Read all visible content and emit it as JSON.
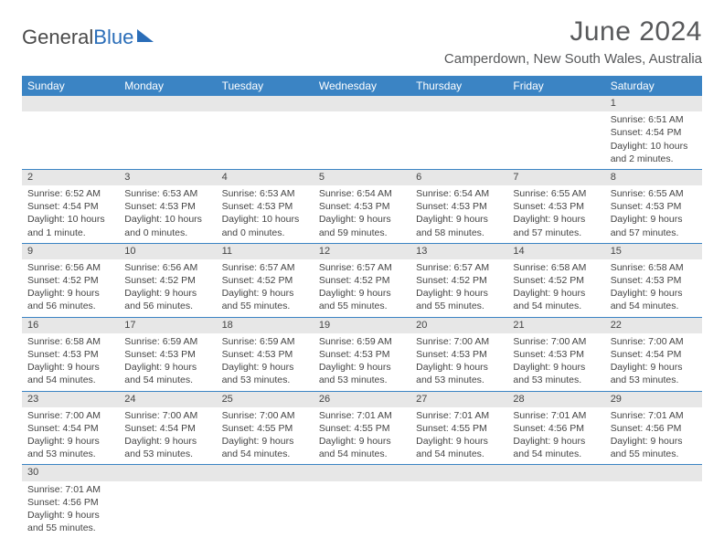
{
  "logo": {
    "part1": "General",
    "part2": "Blue"
  },
  "title": "June 2024",
  "location": "Camperdown, New South Wales, Australia",
  "colors": {
    "header_bg": "#3b84c4",
    "header_text": "#ffffff",
    "daynum_bg": "#e7e7e7",
    "rule": "#3b84c4"
  },
  "daynames": [
    "Sunday",
    "Monday",
    "Tuesday",
    "Wednesday",
    "Thursday",
    "Friday",
    "Saturday"
  ],
  "weeks": [
    [
      null,
      null,
      null,
      null,
      null,
      null,
      {
        "n": "1",
        "sr": "Sunrise: 6:51 AM",
        "ss": "Sunset: 4:54 PM",
        "d1": "Daylight: 10 hours",
        "d2": "and 2 minutes."
      }
    ],
    [
      {
        "n": "2",
        "sr": "Sunrise: 6:52 AM",
        "ss": "Sunset: 4:54 PM",
        "d1": "Daylight: 10 hours",
        "d2": "and 1 minute."
      },
      {
        "n": "3",
        "sr": "Sunrise: 6:53 AM",
        "ss": "Sunset: 4:53 PM",
        "d1": "Daylight: 10 hours",
        "d2": "and 0 minutes."
      },
      {
        "n": "4",
        "sr": "Sunrise: 6:53 AM",
        "ss": "Sunset: 4:53 PM",
        "d1": "Daylight: 10 hours",
        "d2": "and 0 minutes."
      },
      {
        "n": "5",
        "sr": "Sunrise: 6:54 AM",
        "ss": "Sunset: 4:53 PM",
        "d1": "Daylight: 9 hours",
        "d2": "and 59 minutes."
      },
      {
        "n": "6",
        "sr": "Sunrise: 6:54 AM",
        "ss": "Sunset: 4:53 PM",
        "d1": "Daylight: 9 hours",
        "d2": "and 58 minutes."
      },
      {
        "n": "7",
        "sr": "Sunrise: 6:55 AM",
        "ss": "Sunset: 4:53 PM",
        "d1": "Daylight: 9 hours",
        "d2": "and 57 minutes."
      },
      {
        "n": "8",
        "sr": "Sunrise: 6:55 AM",
        "ss": "Sunset: 4:53 PM",
        "d1": "Daylight: 9 hours",
        "d2": "and 57 minutes."
      }
    ],
    [
      {
        "n": "9",
        "sr": "Sunrise: 6:56 AM",
        "ss": "Sunset: 4:52 PM",
        "d1": "Daylight: 9 hours",
        "d2": "and 56 minutes."
      },
      {
        "n": "10",
        "sr": "Sunrise: 6:56 AM",
        "ss": "Sunset: 4:52 PM",
        "d1": "Daylight: 9 hours",
        "d2": "and 56 minutes."
      },
      {
        "n": "11",
        "sr": "Sunrise: 6:57 AM",
        "ss": "Sunset: 4:52 PM",
        "d1": "Daylight: 9 hours",
        "d2": "and 55 minutes."
      },
      {
        "n": "12",
        "sr": "Sunrise: 6:57 AM",
        "ss": "Sunset: 4:52 PM",
        "d1": "Daylight: 9 hours",
        "d2": "and 55 minutes."
      },
      {
        "n": "13",
        "sr": "Sunrise: 6:57 AM",
        "ss": "Sunset: 4:52 PM",
        "d1": "Daylight: 9 hours",
        "d2": "and 55 minutes."
      },
      {
        "n": "14",
        "sr": "Sunrise: 6:58 AM",
        "ss": "Sunset: 4:52 PM",
        "d1": "Daylight: 9 hours",
        "d2": "and 54 minutes."
      },
      {
        "n": "15",
        "sr": "Sunrise: 6:58 AM",
        "ss": "Sunset: 4:53 PM",
        "d1": "Daylight: 9 hours",
        "d2": "and 54 minutes."
      }
    ],
    [
      {
        "n": "16",
        "sr": "Sunrise: 6:58 AM",
        "ss": "Sunset: 4:53 PM",
        "d1": "Daylight: 9 hours",
        "d2": "and 54 minutes."
      },
      {
        "n": "17",
        "sr": "Sunrise: 6:59 AM",
        "ss": "Sunset: 4:53 PM",
        "d1": "Daylight: 9 hours",
        "d2": "and 54 minutes."
      },
      {
        "n": "18",
        "sr": "Sunrise: 6:59 AM",
        "ss": "Sunset: 4:53 PM",
        "d1": "Daylight: 9 hours",
        "d2": "and 53 minutes."
      },
      {
        "n": "19",
        "sr": "Sunrise: 6:59 AM",
        "ss": "Sunset: 4:53 PM",
        "d1": "Daylight: 9 hours",
        "d2": "and 53 minutes."
      },
      {
        "n": "20",
        "sr": "Sunrise: 7:00 AM",
        "ss": "Sunset: 4:53 PM",
        "d1": "Daylight: 9 hours",
        "d2": "and 53 minutes."
      },
      {
        "n": "21",
        "sr": "Sunrise: 7:00 AM",
        "ss": "Sunset: 4:53 PM",
        "d1": "Daylight: 9 hours",
        "d2": "and 53 minutes."
      },
      {
        "n": "22",
        "sr": "Sunrise: 7:00 AM",
        "ss": "Sunset: 4:54 PM",
        "d1": "Daylight: 9 hours",
        "d2": "and 53 minutes."
      }
    ],
    [
      {
        "n": "23",
        "sr": "Sunrise: 7:00 AM",
        "ss": "Sunset: 4:54 PM",
        "d1": "Daylight: 9 hours",
        "d2": "and 53 minutes."
      },
      {
        "n": "24",
        "sr": "Sunrise: 7:00 AM",
        "ss": "Sunset: 4:54 PM",
        "d1": "Daylight: 9 hours",
        "d2": "and 53 minutes."
      },
      {
        "n": "25",
        "sr": "Sunrise: 7:00 AM",
        "ss": "Sunset: 4:55 PM",
        "d1": "Daylight: 9 hours",
        "d2": "and 54 minutes."
      },
      {
        "n": "26",
        "sr": "Sunrise: 7:01 AM",
        "ss": "Sunset: 4:55 PM",
        "d1": "Daylight: 9 hours",
        "d2": "and 54 minutes."
      },
      {
        "n": "27",
        "sr": "Sunrise: 7:01 AM",
        "ss": "Sunset: 4:55 PM",
        "d1": "Daylight: 9 hours",
        "d2": "and 54 minutes."
      },
      {
        "n": "28",
        "sr": "Sunrise: 7:01 AM",
        "ss": "Sunset: 4:56 PM",
        "d1": "Daylight: 9 hours",
        "d2": "and 54 minutes."
      },
      {
        "n": "29",
        "sr": "Sunrise: 7:01 AM",
        "ss": "Sunset: 4:56 PM",
        "d1": "Daylight: 9 hours",
        "d2": "and 55 minutes."
      }
    ],
    [
      {
        "n": "30",
        "sr": "Sunrise: 7:01 AM",
        "ss": "Sunset: 4:56 PM",
        "d1": "Daylight: 9 hours",
        "d2": "and 55 minutes."
      },
      null,
      null,
      null,
      null,
      null,
      null
    ]
  ]
}
